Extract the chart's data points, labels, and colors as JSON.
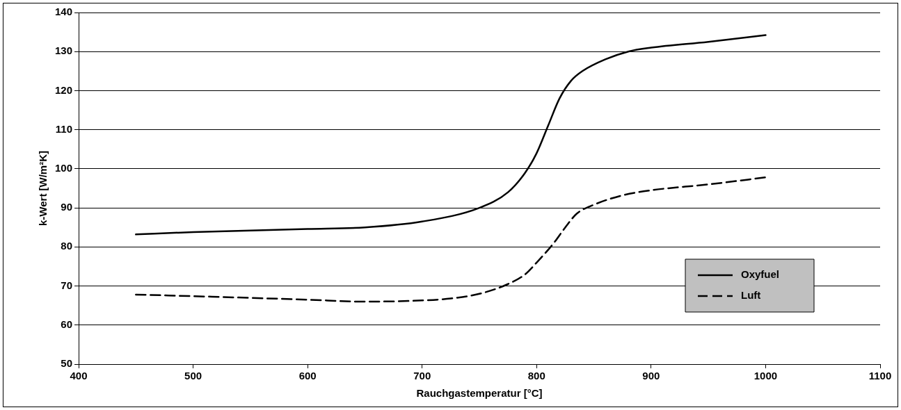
{
  "chart_data": {
    "type": "line",
    "xlabel": "Rauchgastemperatur [°C]",
    "ylabel": "k-Wert [W/m²K]",
    "xlim": [
      400,
      1100
    ],
    "xticks": [
      400,
      500,
      600,
      700,
      800,
      900,
      1000,
      1100
    ],
    "ylim": [
      50,
      140
    ],
    "yticks": [
      50,
      60,
      70,
      80,
      90,
      100,
      110,
      120,
      130,
      140
    ],
    "grid": "y",
    "legend": "bottom right",
    "marker": "none",
    "series": [
      {
        "name": "Oxyfuel",
        "color": "#000000",
        "line_style": "solid",
        "x": [
          450,
          500,
          600,
          650,
          700,
          750,
          775,
          790,
          800,
          810,
          820,
          830,
          840,
          860,
          880,
          900,
          950,
          1000
        ],
        "values": [
          83.2,
          83.8,
          84.6,
          85,
          86.5,
          90,
          94,
          99,
          104,
          111,
          118,
          122.5,
          125,
          128,
          130,
          131,
          132.5,
          134.2
        ]
      },
      {
        "name": "Luft",
        "color": "#000000",
        "line_style": "dashed",
        "x": [
          450,
          500,
          600,
          650,
          700,
          725,
          750,
          775,
          790,
          800,
          815,
          825,
          835,
          850,
          875,
          900,
          950,
          1000
        ],
        "values": [
          67.8,
          67.4,
          66.5,
          66,
          66.3,
          66.8,
          68,
          70.5,
          73,
          76,
          81,
          85,
          88.5,
          90.8,
          93.2,
          94.5,
          96,
          97.8
        ]
      }
    ]
  }
}
